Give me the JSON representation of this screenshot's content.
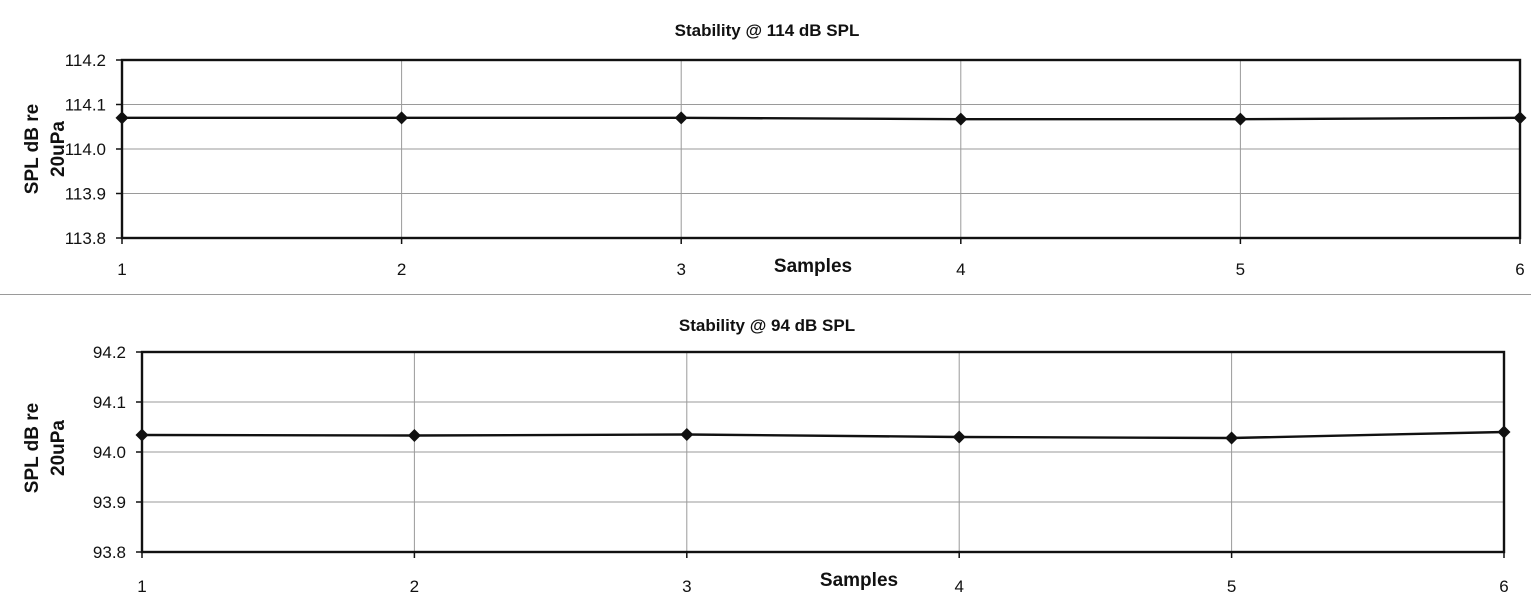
{
  "chart_data": [
    {
      "type": "line",
      "title": "Stability @ 114 dB SPL",
      "xlabel": "Samples",
      "ylabel_line1": "SPL dB re",
      "ylabel_line2": "20uPa",
      "x": [
        1,
        2,
        3,
        4,
        5,
        6
      ],
      "xlim": [
        1,
        6
      ],
      "ylim": [
        113.8,
        114.2
      ],
      "yticks": [
        "114.2",
        "114.1",
        "114.0",
        "113.9",
        "113.8"
      ],
      "xticks": [
        "1",
        "2",
        "3",
        "4",
        "5",
        "6"
      ],
      "grid": true,
      "series": [
        {
          "values": [
            114.07,
            114.07,
            114.07,
            114.067,
            114.067,
            114.07
          ],
          "color": "#111111"
        }
      ]
    },
    {
      "type": "line",
      "title": "Stability @ 94 dB SPL",
      "xlabel": "Samples",
      "ylabel_line1": "SPL dB re",
      "ylabel_line2": "20uPa",
      "x": [
        1,
        2,
        3,
        4,
        5,
        6
      ],
      "xlim": [
        1,
        6
      ],
      "ylim": [
        93.8,
        94.2
      ],
      "yticks": [
        "94.2",
        "94.1",
        "94.0",
        "93.9",
        "93.8"
      ],
      "xticks": [
        "1",
        "2",
        "3",
        "4",
        "5",
        "6"
      ],
      "grid": true,
      "series": [
        {
          "values": [
            94.034,
            94.033,
            94.035,
            94.03,
            94.028,
            94.04
          ],
          "color": "#111111"
        }
      ]
    }
  ]
}
